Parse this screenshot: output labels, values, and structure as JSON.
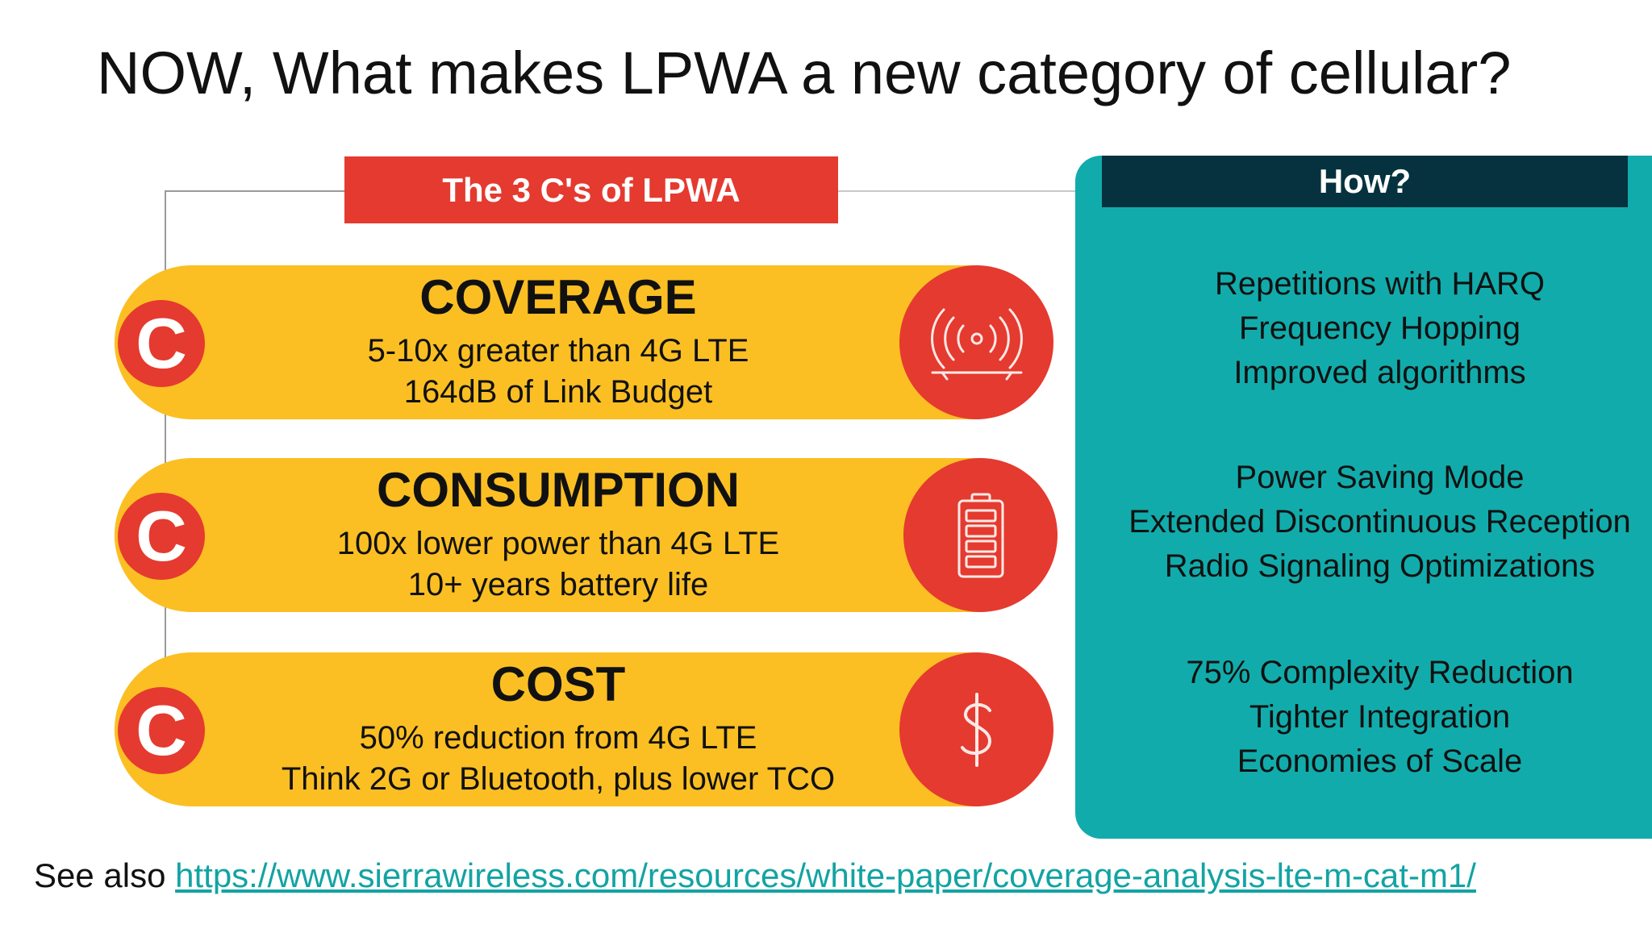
{
  "title": "NOW, What makes LPWA a new category of cellular?",
  "banner": "The 3 C's of LPWA",
  "pills": [
    {
      "letter": "C",
      "heading": "COVERAGE",
      "lines": [
        "5-10x greater than 4G LTE",
        "164dB of Link Budget"
      ],
      "icon": "antenna-signal-icon"
    },
    {
      "letter": "C",
      "heading": "CONSUMPTION",
      "lines": [
        "100x lower power than 4G LTE",
        "10+ years battery life"
      ],
      "icon": "battery-icon"
    },
    {
      "letter": "C",
      "heading": "COST",
      "lines": [
        "50% reduction from 4G LTE",
        "Think 2G or Bluetooth, plus lower TCO"
      ],
      "icon": "dollar-icon"
    }
  ],
  "how": {
    "header": "How?",
    "groups": [
      [
        "Repetitions with HARQ",
        "Frequency Hopping",
        "Improved algorithms"
      ],
      [
        "Power Saving Mode",
        "Extended Discontinuous Reception",
        "Radio Signaling Optimizations"
      ],
      [
        "75% Complexity Reduction",
        "Tighter Integration",
        "Economies of Scale"
      ]
    ]
  },
  "see_also": {
    "prefix": "See also ",
    "url": "https://www.sierrawireless.com/resources/white-paper/coverage-analysis-lte-m-cat-m1/"
  },
  "colors": {
    "red": "#e53a2f",
    "yellow": "#fbbf23",
    "teal": "#12abab",
    "dark_teal": "#05323e",
    "link": "#13a3a3"
  }
}
